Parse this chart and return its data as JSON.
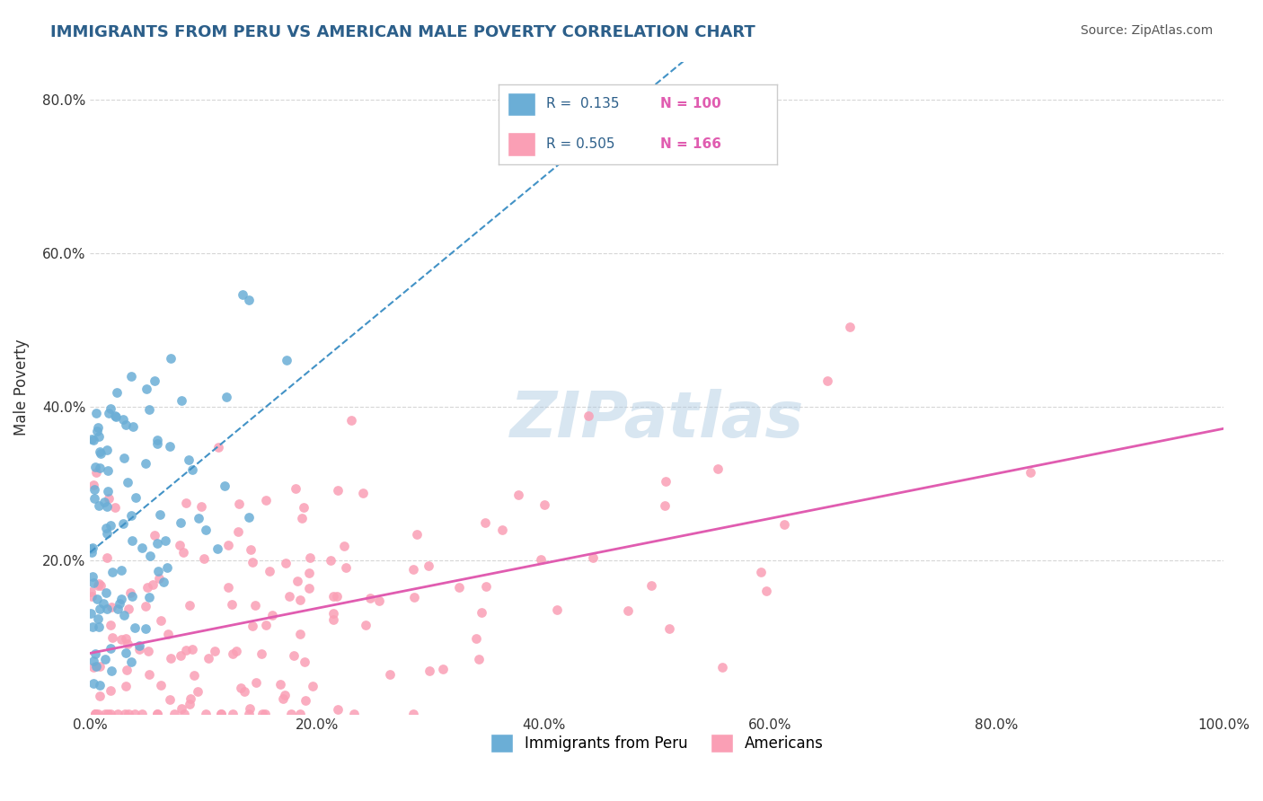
{
  "title": "IMMIGRANTS FROM PERU VS AMERICAN MALE POVERTY CORRELATION CHART",
  "source": "Source: ZipAtlas.com",
  "xlabel": "",
  "ylabel": "Male Poverty",
  "xlim": [
    0.0,
    1.0
  ],
  "ylim": [
    0.0,
    0.85
  ],
  "xtick_labels": [
    "0.0%",
    "20.0%",
    "40.0%",
    "60.0%",
    "80.0%",
    "100.0%"
  ],
  "xtick_vals": [
    0.0,
    0.2,
    0.4,
    0.6,
    0.8,
    1.0
  ],
  "ytick_labels": [
    "20.0%",
    "40.0%",
    "60.0%",
    "80.0%"
  ],
  "ytick_vals": [
    0.2,
    0.4,
    0.6,
    0.8
  ],
  "watermark": "ZIPatlas",
  "legend_r1": "R =  0.135",
  "legend_n1": "N = 100",
  "legend_r2": "R = 0.505",
  "legend_n2": "N = 166",
  "blue_color": "#6baed6",
  "pink_color": "#fa9fb5",
  "blue_line_color": "#4292c6",
  "pink_line_color": "#e05cb0",
  "title_color": "#2c5f8a",
  "source_color": "#555555",
  "legend_label_blue": "Immigrants from Peru",
  "legend_label_pink": "Americans",
  "R1": 0.135,
  "N1": 100,
  "R2": 0.505,
  "N2": 166,
  "seed": 42
}
